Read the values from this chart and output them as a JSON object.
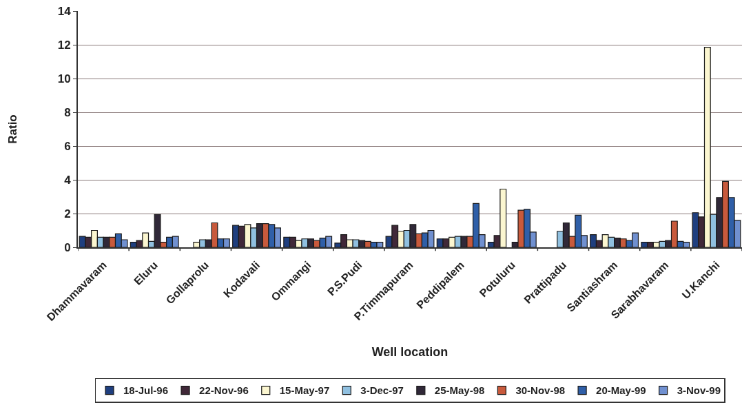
{
  "chart_data": {
    "type": "bar",
    "xlabel": "Well location",
    "ylabel": "Ratio",
    "categories": [
      "Dhammavaram",
      "Eluru",
      "Gollaprolu",
      "Kodavali",
      "Ommangi",
      "P.S.Pudi",
      "P.Timmapuram",
      "Peddipalem",
      "Potuluru",
      "Prattipadu",
      "Santiashram",
      "Sarabhavaram",
      "U.Kanchi"
    ],
    "series": [
      {
        "name": "18-Jul-96",
        "color": "#1f3f7f",
        "values": [
          0.65,
          0.3,
          null,
          1.3,
          0.6,
          0.25,
          0.65,
          0.5,
          0.3,
          null,
          0.75,
          0.3,
          2.05
        ]
      },
      {
        "name": "22-Nov-96",
        "color": "#402838",
        "values": [
          0.6,
          0.4,
          null,
          1.25,
          0.6,
          0.75,
          1.3,
          0.5,
          0.7,
          null,
          0.4,
          0.3,
          1.8
        ]
      },
      {
        "name": "15-May-97",
        "color": "#fbf6d0",
        "values": [
          1.0,
          0.85,
          0.3,
          1.35,
          0.4,
          0.45,
          0.95,
          0.6,
          3.45,
          null,
          0.75,
          0.3,
          11.85
        ]
      },
      {
        "name": "3-Dec-97",
        "color": "#90c0e0",
        "values": [
          0.6,
          0.35,
          0.45,
          1.15,
          0.5,
          0.45,
          1.0,
          0.65,
          null,
          0.95,
          0.6,
          0.35,
          1.95
        ]
      },
      {
        "name": "25-May-98",
        "color": "#302838",
        "values": [
          0.6,
          1.95,
          0.45,
          1.4,
          0.5,
          0.4,
          1.35,
          0.65,
          0.3,
          1.45,
          0.55,
          0.4,
          2.95
        ]
      },
      {
        "name": "30-Nov-98",
        "color": "#c85a3c",
        "values": [
          0.6,
          0.3,
          1.45,
          1.4,
          0.4,
          0.35,
          0.8,
          0.65,
          2.2,
          0.65,
          0.5,
          1.55,
          3.9
        ]
      },
      {
        "name": "20-May-99",
        "color": "#2f5fa8",
        "values": [
          0.8,
          0.6,
          0.5,
          1.35,
          0.55,
          0.3,
          0.85,
          2.6,
          2.25,
          1.9,
          0.4,
          0.35,
          2.95
        ]
      },
      {
        "name": "3-Nov-99",
        "color": "#7090d0",
        "values": [
          0.45,
          0.65,
          0.5,
          1.15,
          0.65,
          0.3,
          1.0,
          0.75,
          0.9,
          0.7,
          0.85,
          0.3,
          1.6
        ]
      }
    ],
    "ylim": [
      0,
      14
    ],
    "yticks": [
      0,
      2,
      4,
      6,
      8,
      10,
      12,
      14
    ],
    "grid": "y",
    "legend": "bottom"
  }
}
